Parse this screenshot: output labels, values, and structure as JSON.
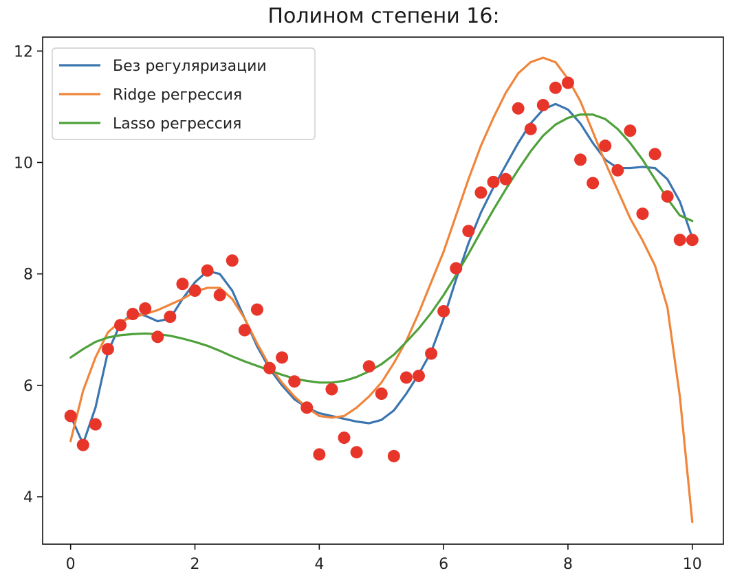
{
  "chart_data": {
    "type": "line",
    "title": "Полином степени 16:",
    "xlabel": "",
    "ylabel": "",
    "xlim": [
      -0.45,
      10.5
    ],
    "ylim": [
      3.15,
      12.25
    ],
    "x_ticks": [
      0,
      2,
      4,
      6,
      8,
      10
    ],
    "y_ticks": [
      4,
      6,
      8,
      10,
      12
    ],
    "grid": false,
    "legend_position": "top-left",
    "series": [
      {
        "name": "Без регуляризации",
        "color": "#3b75af",
        "x": [
          0,
          0.2,
          0.4,
          0.6,
          0.8,
          1.0,
          1.2,
          1.4,
          1.6,
          1.8,
          2.0,
          2.2,
          2.4,
          2.6,
          2.8,
          3.0,
          3.2,
          3.4,
          3.6,
          3.8,
          4.0,
          4.2,
          4.4,
          4.6,
          4.8,
          5.0,
          5.2,
          5.4,
          5.6,
          5.8,
          6.0,
          6.2,
          6.4,
          6.6,
          6.8,
          7.0,
          7.2,
          7.4,
          7.6,
          7.8,
          8.0,
          8.2,
          8.4,
          8.6,
          8.8,
          9.0,
          9.2,
          9.4,
          9.6,
          9.8,
          10.0
        ],
        "values": [
          5.45,
          4.95,
          5.6,
          6.6,
          7.1,
          7.3,
          7.25,
          7.15,
          7.2,
          7.55,
          7.85,
          8.05,
          8.0,
          7.7,
          7.2,
          6.7,
          6.3,
          6.0,
          5.75,
          5.6,
          5.5,
          5.45,
          5.4,
          5.35,
          5.32,
          5.38,
          5.55,
          5.85,
          6.2,
          6.6,
          7.2,
          7.9,
          8.55,
          9.1,
          9.55,
          9.95,
          10.35,
          10.7,
          10.95,
          11.05,
          10.95,
          10.7,
          10.35,
          10.05,
          9.9,
          9.9,
          9.92,
          9.9,
          9.7,
          9.3,
          8.65
        ]
      },
      {
        "name": "Ridge регрессия",
        "color": "#f0853a",
        "x": [
          0,
          0.2,
          0.4,
          0.6,
          0.8,
          1.0,
          1.2,
          1.4,
          1.6,
          1.8,
          2.0,
          2.2,
          2.4,
          2.6,
          2.8,
          3.0,
          3.2,
          3.4,
          3.6,
          3.8,
          4.0,
          4.2,
          4.4,
          4.6,
          4.8,
          5.0,
          5.2,
          5.4,
          5.6,
          5.8,
          6.0,
          6.2,
          6.4,
          6.6,
          6.8,
          7.0,
          7.2,
          7.4,
          7.6,
          7.8,
          8.0,
          8.2,
          8.4,
          8.6,
          8.8,
          9.0,
          9.2,
          9.4,
          9.6,
          9.8,
          10.0
        ],
        "values": [
          5.0,
          5.9,
          6.5,
          6.95,
          7.15,
          7.22,
          7.28,
          7.35,
          7.45,
          7.55,
          7.68,
          7.75,
          7.75,
          7.55,
          7.2,
          6.75,
          6.35,
          6.05,
          5.8,
          5.6,
          5.45,
          5.42,
          5.45,
          5.6,
          5.8,
          6.05,
          6.4,
          6.8,
          7.3,
          7.85,
          8.4,
          9.05,
          9.7,
          10.3,
          10.8,
          11.25,
          11.6,
          11.8,
          11.88,
          11.8,
          11.5,
          11.1,
          10.55,
          10.0,
          9.5,
          9.0,
          8.6,
          8.15,
          7.4,
          5.8,
          3.55
        ]
      },
      {
        "name": "Lasso регрессия",
        "color": "#4ea13a",
        "x": [
          0,
          0.2,
          0.4,
          0.6,
          0.8,
          1.0,
          1.2,
          1.4,
          1.6,
          1.8,
          2.0,
          2.2,
          2.4,
          2.6,
          2.8,
          3.0,
          3.2,
          3.4,
          3.6,
          3.8,
          4.0,
          4.2,
          4.4,
          4.6,
          4.8,
          5.0,
          5.2,
          5.4,
          5.6,
          5.8,
          6.0,
          6.2,
          6.4,
          6.6,
          6.8,
          7.0,
          7.2,
          7.4,
          7.6,
          7.8,
          8.0,
          8.2,
          8.4,
          8.6,
          8.8,
          9.0,
          9.2,
          9.4,
          9.6,
          9.8,
          10.0
        ],
        "values": [
          6.5,
          6.65,
          6.78,
          6.86,
          6.9,
          6.92,
          6.93,
          6.92,
          6.89,
          6.84,
          6.78,
          6.71,
          6.62,
          6.52,
          6.43,
          6.35,
          6.27,
          6.19,
          6.12,
          6.08,
          6.05,
          6.05,
          6.08,
          6.15,
          6.25,
          6.38,
          6.55,
          6.78,
          7.02,
          7.3,
          7.62,
          7.98,
          8.36,
          8.76,
          9.15,
          9.52,
          9.87,
          10.2,
          10.48,
          10.68,
          10.8,
          10.86,
          10.86,
          10.78,
          10.6,
          10.35,
          10.05,
          9.7,
          9.35,
          9.05,
          8.95
        ]
      },
      {
        "name": "",
        "type": "scatter",
        "color": "#e8352a",
        "x": [
          0,
          0.2,
          0.4,
          0.6,
          0.8,
          1.0,
          1.2,
          1.4,
          1.6,
          1.8,
          2.0,
          2.2,
          2.4,
          2.6,
          2.8,
          3.0,
          3.2,
          3.4,
          3.6,
          3.8,
          4.0,
          4.2,
          4.4,
          4.6,
          4.8,
          5.0,
          5.2,
          5.4,
          5.6,
          5.8,
          6.0,
          6.2,
          6.4,
          6.6,
          6.8,
          7.0,
          7.2,
          7.4,
          7.6,
          7.8,
          8.0,
          8.2,
          8.4,
          8.6,
          8.8,
          9.0,
          9.2,
          9.4,
          9.6,
          9.8,
          10.0
        ],
        "values": [
          5.45,
          4.93,
          5.3,
          6.65,
          7.08,
          7.28,
          7.38,
          6.87,
          7.23,
          7.82,
          7.7,
          8.06,
          7.62,
          8.24,
          6.99,
          7.36,
          6.31,
          6.5,
          6.07,
          5.6,
          4.76,
          5.93,
          5.06,
          4.8,
          6.34,
          5.85,
          4.73,
          6.14,
          6.17,
          6.57,
          7.33,
          8.1,
          8.77,
          9.46,
          9.65,
          9.7,
          10.97,
          10.6,
          11.03,
          11.34,
          11.43,
          10.05,
          9.63,
          10.3,
          9.86,
          10.57,
          9.08,
          10.15,
          9.39,
          8.61,
          8.61
        ]
      }
    ]
  }
}
